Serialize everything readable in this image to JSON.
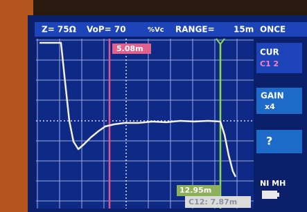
{
  "header": {
    "impedance": "Z= 75Ω",
    "vop": "VoP= 70",
    "vop_unit": "%Vc",
    "range_label": "RANGE=",
    "range_value": "15m",
    "mode": "ONCE"
  },
  "cursors": {
    "cursor1": "5.08m",
    "cursor2": "12.95m",
    "delta": "C12: 7.87m"
  },
  "sidebar": {
    "cur": "CUR",
    "cur_sub": "C1 2",
    "gain": "GAIN",
    "gain_value": "x4",
    "help": "?",
    "battery": "NI MH"
  }
}
